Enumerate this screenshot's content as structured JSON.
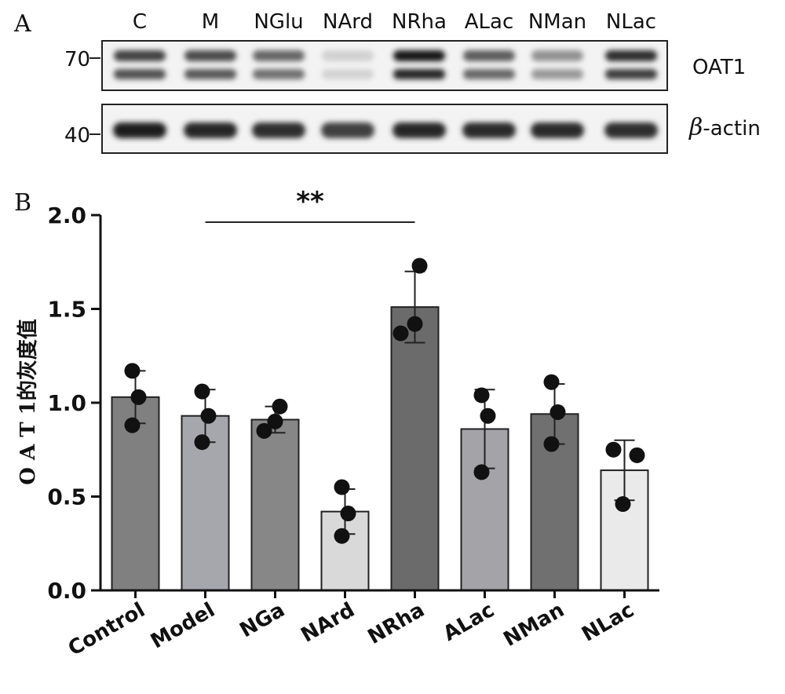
{
  "panel_a": {
    "letter": "A",
    "lanes": [
      "C",
      "M",
      "NGlu",
      "NArd",
      "NRha",
      "ALac",
      "NMan",
      "NLac"
    ],
    "blots": [
      {
        "protein": "OAT1",
        "mw": "70",
        "band_intensity": [
          0.78,
          0.74,
          0.62,
          0.12,
          1.0,
          0.66,
          0.42,
          0.88
        ]
      },
      {
        "protein": "β-actin",
        "protein_symbol": "β",
        "protein_rest": "-actin",
        "mw": "40",
        "band_intensity": [
          0.95,
          0.92,
          0.88,
          0.8,
          0.92,
          0.9,
          0.9,
          0.88
        ]
      }
    ]
  },
  "chart_data": {
    "panel_letter": "B",
    "type": "bar",
    "categories": [
      "Control",
      "Model",
      "NGa",
      "NArd",
      "NRha",
      "ALac",
      "NMan",
      "NLac"
    ],
    "values": [
      1.03,
      0.93,
      0.91,
      0.42,
      1.51,
      0.86,
      0.94,
      0.64
    ],
    "error_bars": [
      0.14,
      0.14,
      0.07,
      0.12,
      0.19,
      0.21,
      0.16,
      0.16
    ],
    "points": [
      [
        1.17,
        1.03,
        0.88
      ],
      [
        1.06,
        0.93,
        0.79
      ],
      [
        0.98,
        0.9,
        0.85
      ],
      [
        0.55,
        0.41,
        0.29
      ],
      [
        1.73,
        1.42,
        1.37
      ],
      [
        1.04,
        0.93,
        0.63
      ],
      [
        1.11,
        0.95,
        0.78
      ],
      [
        0.75,
        0.72,
        0.46
      ]
    ],
    "bar_colors": [
      "#808080",
      "#a6a6ad",
      "#878787",
      "#d9d9d9",
      "#6b6b6b",
      "#a3a3a8",
      "#707070",
      "#eaeaea"
    ],
    "ylabel": "O A T 1的灰度值",
    "xlabel": "",
    "ylim": [
      0,
      2.0
    ],
    "yticks": [
      "0.0",
      "0.5",
      "1.0",
      "1.5",
      "2.0"
    ],
    "ytick_values": [
      0,
      0.5,
      1.0,
      1.5,
      2.0
    ],
    "significance": {
      "from": "Model",
      "to": "NRha",
      "label": "**"
    },
    "grid": false,
    "legend": "none"
  }
}
